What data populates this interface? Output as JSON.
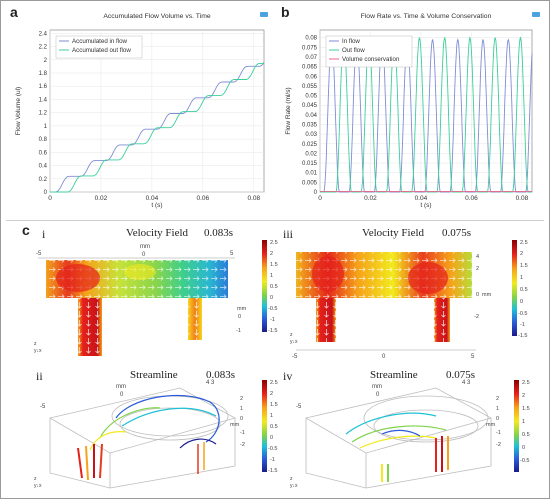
{
  "panels": {
    "a": "a",
    "b": "b",
    "c": "c",
    "i": "i",
    "ii": "ii",
    "iii": "iii",
    "iv": "iv"
  },
  "chart_data": [
    {
      "type": "line",
      "title": "Accumulated Flow Volume vs. Time",
      "xlabel": "t (s)",
      "ylabel": "Flow Volume (ul)",
      "xlim": [
        0,
        0.084
      ],
      "ylim": [
        0,
        2.45
      ],
      "xticks": [
        "0",
        "0.02",
        "0.04",
        "0.06",
        "0.08"
      ],
      "yticks": [
        "0",
        "0.2",
        "0.4",
        "0.6",
        "0.8",
        "1",
        "1.2",
        "1.4",
        "1.6",
        "1.8",
        "2",
        "2.2",
        "2.4"
      ],
      "legend": "top-left",
      "grid": true,
      "series": [
        {
          "name": "Accumulated in flow",
          "color": "#7f8ed4"
        },
        {
          "name": "Accumulated out flow",
          "color": "#3ccf9a"
        }
      ]
    },
    {
      "type": "line",
      "title": "Flow Rate vs. Time & Volume Conservation",
      "xlabel": "t (s)",
      "ylabel": "Flow Rate (ml/s)",
      "xlim": [
        0,
        0.084
      ],
      "ylim": [
        0,
        0.084
      ],
      "xticks": [
        "0",
        "0.02",
        "0.04",
        "0.06",
        "0.08"
      ],
      "yticks": [
        "0",
        "0.005",
        "0.01",
        "0.015",
        "0.02",
        "0.025",
        "0.03",
        "0.035",
        "0.04",
        "0.045",
        "0.05",
        "0.055",
        "0.06",
        "0.065",
        "0.07",
        "0.075",
        "0.08"
      ],
      "legend": "top-left",
      "grid": true,
      "series": [
        {
          "name": "In flow",
          "color": "#7f8ed4"
        },
        {
          "name": "Out flow",
          "color": "#3ccf9a"
        },
        {
          "name": "Volume conservation",
          "color": "#e86a8a"
        }
      ]
    },
    {
      "type": "heatmap",
      "panel": "i",
      "title": "Velocity Field",
      "time": "0.083s",
      "axis_unit": "mm",
      "x_ticks": [
        "-5",
        "0",
        "5"
      ],
      "z_ticks": [
        "0",
        "-1"
      ],
      "colorbar": [
        "2.5",
        "2",
        "1.5",
        "1",
        "0.5",
        "0",
        "-0.5",
        "-1",
        "-1.5"
      ],
      "axes_triad": "z y x"
    },
    {
      "type": "heatmap",
      "panel": "iii",
      "title": "Velocity Field",
      "time": "0.075s",
      "axis_unit": "mm",
      "x_ticks": [
        "-5",
        "0",
        "5"
      ],
      "z_ticks": [
        "4",
        "2",
        "0",
        "-2"
      ],
      "colorbar": [
        "2.5",
        "2",
        "1.5",
        "1",
        "0.5",
        "0",
        "-0.5",
        "-1",
        "-1.5"
      ],
      "axes_triad": "z y x"
    },
    {
      "type": "streamline",
      "panel": "ii",
      "title": "Streamline",
      "time": "0.083s",
      "axis_unit": "mm",
      "ticks": [
        "-5",
        "0",
        "4",
        "3",
        "2",
        "1",
        "0",
        "-1",
        "-2"
      ],
      "colorbar": [
        "2.5",
        "2",
        "1.5",
        "1",
        "0.5",
        "0",
        "-0.5",
        "-1",
        "-1.5"
      ],
      "axes_triad": "y z x"
    },
    {
      "type": "streamline",
      "panel": "iv",
      "title": "Streamline",
      "time": "0.075s",
      "axis_unit": "mm",
      "ticks": [
        "-5",
        "0",
        "4",
        "3",
        "2",
        "1",
        "0",
        "-1",
        "-2"
      ],
      "colorbar": [
        "2.5",
        "2",
        "1.5",
        "1",
        "0.5",
        "0",
        "-0.5"
      ],
      "axes_triad": "y z x"
    }
  ]
}
